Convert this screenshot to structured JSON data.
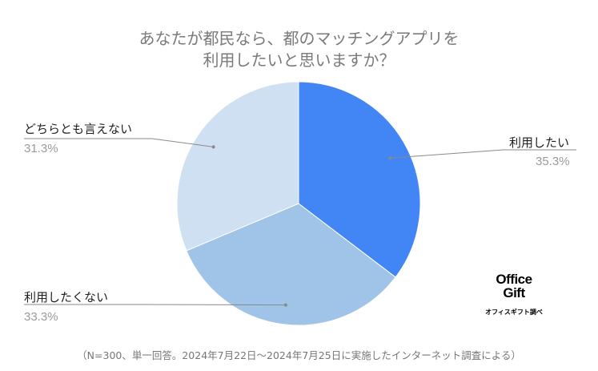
{
  "chart_data": {
    "type": "pie",
    "title_lines": [
      "あなたが都民なら、都のマッチングアプリを",
      "利用したいと思いますか？"
    ],
    "slices": [
      {
        "label": "利用したい",
        "value": 35.3,
        "display": "35.3%",
        "color": "#4285f4"
      },
      {
        "label": "利用したくない",
        "value": 33.3,
        "display": "33.3%",
        "color": "#a0c3e8"
      },
      {
        "label": "どちらとも言えない",
        "value": 31.3,
        "display": "31.3%",
        "color": "#cfe0f3"
      }
    ],
    "note": "（N=300、単一回答。2024年7月22日〜2024年7月25日に実施したインターネット調査による）"
  },
  "logo": {
    "line1": "Office",
    "line2": "Gift",
    "sub": "オフィスギフト調べ"
  },
  "colors": {
    "leader_line": "#8a8a8a",
    "title": "#7a7a7a"
  }
}
